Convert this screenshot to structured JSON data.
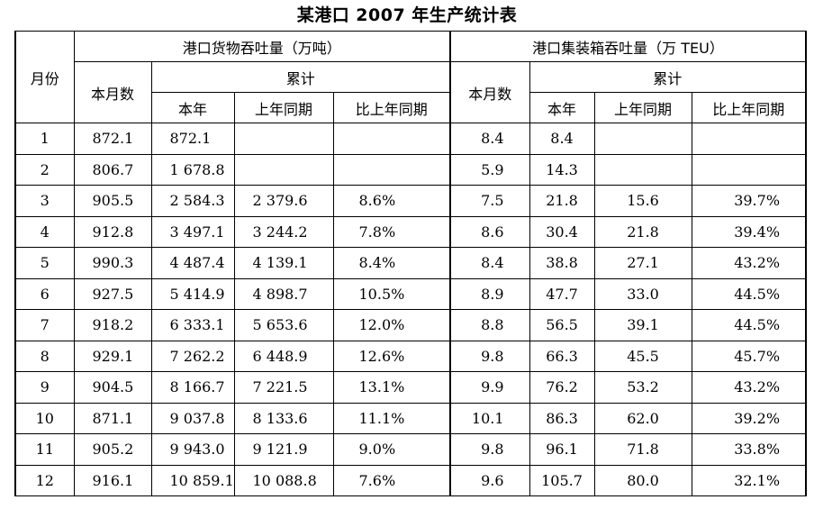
{
  "title": "某港口 2007 年生产统计表",
  "headers": {
    "month": "月份",
    "cargo_group": "港口货物吞吐量（万吨）",
    "container_group": "港口集装箱吞吐量（万 TEU）",
    "this_month": "本月数",
    "cumulative": "累计",
    "this_year": "本年",
    "last_year_same": "上年同期",
    "vs_last_year": "比上年同期"
  },
  "rows": [
    {
      "month": "1",
      "cargo_month": "872.1",
      "cargo_year": "872.1",
      "cargo_last": "",
      "cargo_pct": "",
      "cont_month": "8.4",
      "cont_year": "8.4",
      "cont_last": "",
      "cont_pct": ""
    },
    {
      "month": "2",
      "cargo_month": "806.7",
      "cargo_year": "1 678.8",
      "cargo_last": "",
      "cargo_pct": "",
      "cont_month": "5.9",
      "cont_year": "14.3",
      "cont_last": "",
      "cont_pct": ""
    },
    {
      "month": "3",
      "cargo_month": "905.5",
      "cargo_year": "2 584.3",
      "cargo_last": "2 379.6",
      "cargo_pct": "8.6%",
      "cont_month": "7.5",
      "cont_year": "21.8",
      "cont_last": "15.6",
      "cont_pct": "39.7%"
    },
    {
      "month": "4",
      "cargo_month": "912.8",
      "cargo_year": "3 497.1",
      "cargo_last": "3 244.2",
      "cargo_pct": "7.8%",
      "cont_month": "8.6",
      "cont_year": "30.4",
      "cont_last": "21.8",
      "cont_pct": "39.4%"
    },
    {
      "month": "5",
      "cargo_month": "990.3",
      "cargo_year": "4 487.4",
      "cargo_last": "4 139.1",
      "cargo_pct": "8.4%",
      "cont_month": "8.4",
      "cont_year": "38.8",
      "cont_last": "27.1",
      "cont_pct": "43.2%"
    },
    {
      "month": "6",
      "cargo_month": "927.5",
      "cargo_year": "5 414.9",
      "cargo_last": "4 898.7",
      "cargo_pct": "10.5%",
      "cont_month": "8.9",
      "cont_year": "47.7",
      "cont_last": "33.0",
      "cont_pct": "44.5%"
    },
    {
      "month": "7",
      "cargo_month": "918.2",
      "cargo_year": "6 333.1",
      "cargo_last": "5 653.6",
      "cargo_pct": "12.0%",
      "cont_month": "8.8",
      "cont_year": "56.5",
      "cont_last": "39.1",
      "cont_pct": "44.5%"
    },
    {
      "month": "8",
      "cargo_month": "929.1",
      "cargo_year": "7 262.2",
      "cargo_last": "6 448.9",
      "cargo_pct": "12.6%",
      "cont_month": "9.8",
      "cont_year": "66.3",
      "cont_last": "45.5",
      "cont_pct": "45.7%"
    },
    {
      "month": "9",
      "cargo_month": "904.5",
      "cargo_year": "8 166.7",
      "cargo_last": "7 221.5",
      "cargo_pct": "13.1%",
      "cont_month": "9.9",
      "cont_year": "76.2",
      "cont_last": "53.2",
      "cont_pct": "43.2%"
    },
    {
      "month": "10",
      "cargo_month": "871.1",
      "cargo_year": "9 037.8",
      "cargo_last": "8 133.6",
      "cargo_pct": "11.1%",
      "cont_month": "10.1",
      "cont_year": "86.3",
      "cont_last": "62.0",
      "cont_pct": "39.2%"
    },
    {
      "month": "11",
      "cargo_month": "905.2",
      "cargo_year": "9 943.0",
      "cargo_last": "9 121.9",
      "cargo_pct": "9.0%",
      "cont_month": "9.8",
      "cont_year": "96.1",
      "cont_last": "71.8",
      "cont_pct": "33.8%"
    },
    {
      "month": "12",
      "cargo_month": "916.1",
      "cargo_year": "10 859.1",
      "cargo_last": "10 088.8",
      "cargo_pct": "7.6%",
      "cont_month": "9.6",
      "cont_year": "105.7",
      "cont_last": "80.0",
      "cont_pct": "32.1%"
    }
  ]
}
